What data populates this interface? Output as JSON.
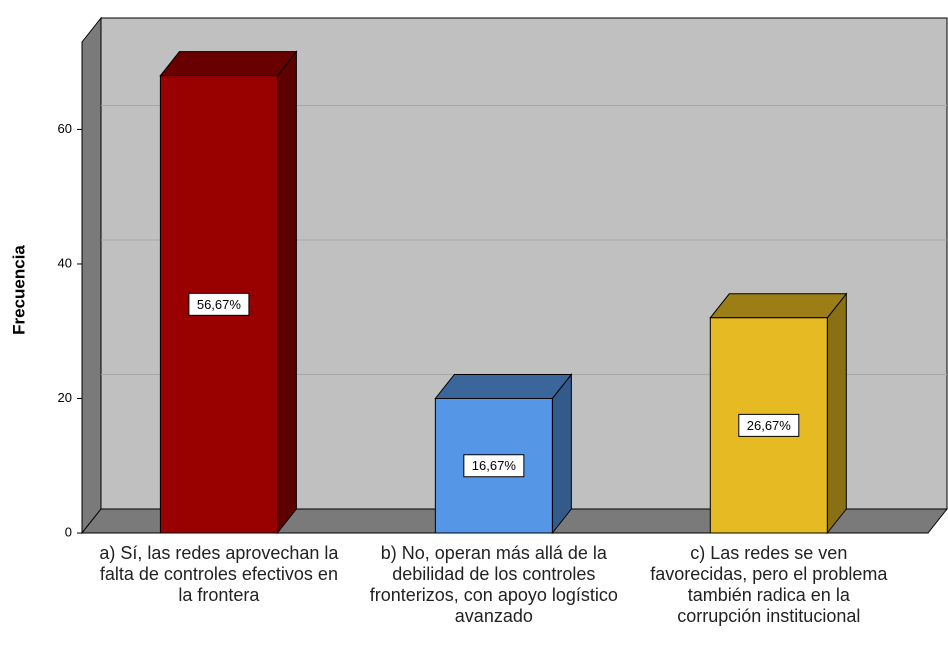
{
  "chart_data": {
    "type": "bar3d",
    "y_label": "Frecuencia",
    "categories": [
      "a) Sí, las redes aprovechan la falta de controles efectivos en la frontera",
      "b) No, operan más allá de la debilidad de los controles fronterizos, con apoyo logístico avanzado",
      "c) Las redes se ven favorecidas, pero el problema también radica en la corrupción institucional"
    ],
    "values": [
      68,
      20,
      32
    ],
    "value_labels": [
      "56,67%",
      "16,67%",
      "26,67%"
    ],
    "colors": [
      "#990000",
      "#5596e6",
      "#e5ba22"
    ],
    "ylim": [
      0,
      73
    ],
    "yticks": [
      0,
      20,
      40,
      60
    ],
    "grid": true
  }
}
